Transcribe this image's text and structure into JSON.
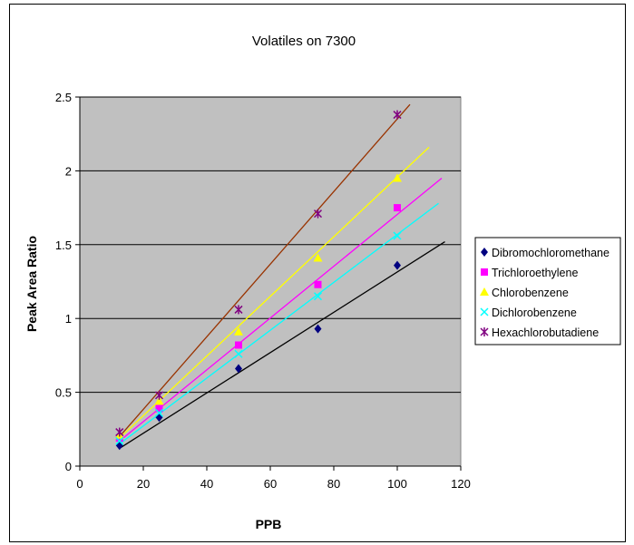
{
  "chart_data": {
    "type": "scatter",
    "title": "Volatiles on 7300",
    "xlabel": "PPB",
    "ylabel": "Peak Area Ratio",
    "xlim": [
      0,
      120
    ],
    "ylim": [
      0,
      2.5
    ],
    "x_ticks": [
      "0",
      "20",
      "40",
      "60",
      "80",
      "100",
      "120"
    ],
    "y_ticks": [
      "0",
      "0.5",
      "1",
      "1.5",
      "2",
      "2.5"
    ],
    "grid": "horizontal major gridlines",
    "legend_position": "right",
    "series": [
      {
        "name": "Dibromochloromethane",
        "marker": "diamond",
        "color": "#000080",
        "trend_color": "#000000",
        "x": [
          12.5,
          25,
          50,
          75,
          100
        ],
        "y": [
          0.14,
          0.33,
          0.66,
          0.93,
          1.36
        ],
        "trend": {
          "x0": 12.5,
          "y0": 0.12,
          "x1": 115,
          "y1": 1.52
        }
      },
      {
        "name": "Trichloroethylene",
        "marker": "square",
        "color": "#FF00FF",
        "trend_color": "#FF00FF",
        "x": [
          12.5,
          25,
          50,
          75,
          100
        ],
        "y": [
          0.19,
          0.39,
          0.82,
          1.23,
          1.75
        ],
        "trend": {
          "x0": 12.5,
          "y0": 0.17,
          "x1": 114,
          "y1": 1.95
        }
      },
      {
        "name": "Chlorobenzene",
        "marker": "triangle",
        "color": "#FFFF00",
        "trend_color": "#FFFF00",
        "x": [
          12.5,
          25,
          50,
          75,
          100
        ],
        "y": [
          0.21,
          0.44,
          0.91,
          1.41,
          1.95
        ],
        "trend": {
          "x0": 12.5,
          "y0": 0.19,
          "x1": 110,
          "y1": 2.16
        }
      },
      {
        "name": "Dichlorobenzene",
        "marker": "x",
        "color": "#00FFFF",
        "trend_color": "#00FFFF",
        "x": [
          12.5,
          25,
          50,
          75,
          100
        ],
        "y": [
          0.17,
          0.36,
          0.76,
          1.15,
          1.56
        ],
        "trend": {
          "x0": 12.5,
          "y0": 0.15,
          "x1": 113,
          "y1": 1.78
        }
      },
      {
        "name": "Hexachlorobutadiene",
        "marker": "star",
        "color": "#800080",
        "trend_color": "#993300",
        "x": [
          12.5,
          25,
          50,
          75,
          100
        ],
        "y": [
          0.23,
          0.48,
          1.06,
          1.71,
          2.38
        ],
        "trend": {
          "x0": 12.5,
          "y0": 0.2,
          "x1": 104,
          "y1": 2.45
        }
      }
    ],
    "plot_background": "#C0C0C0"
  }
}
